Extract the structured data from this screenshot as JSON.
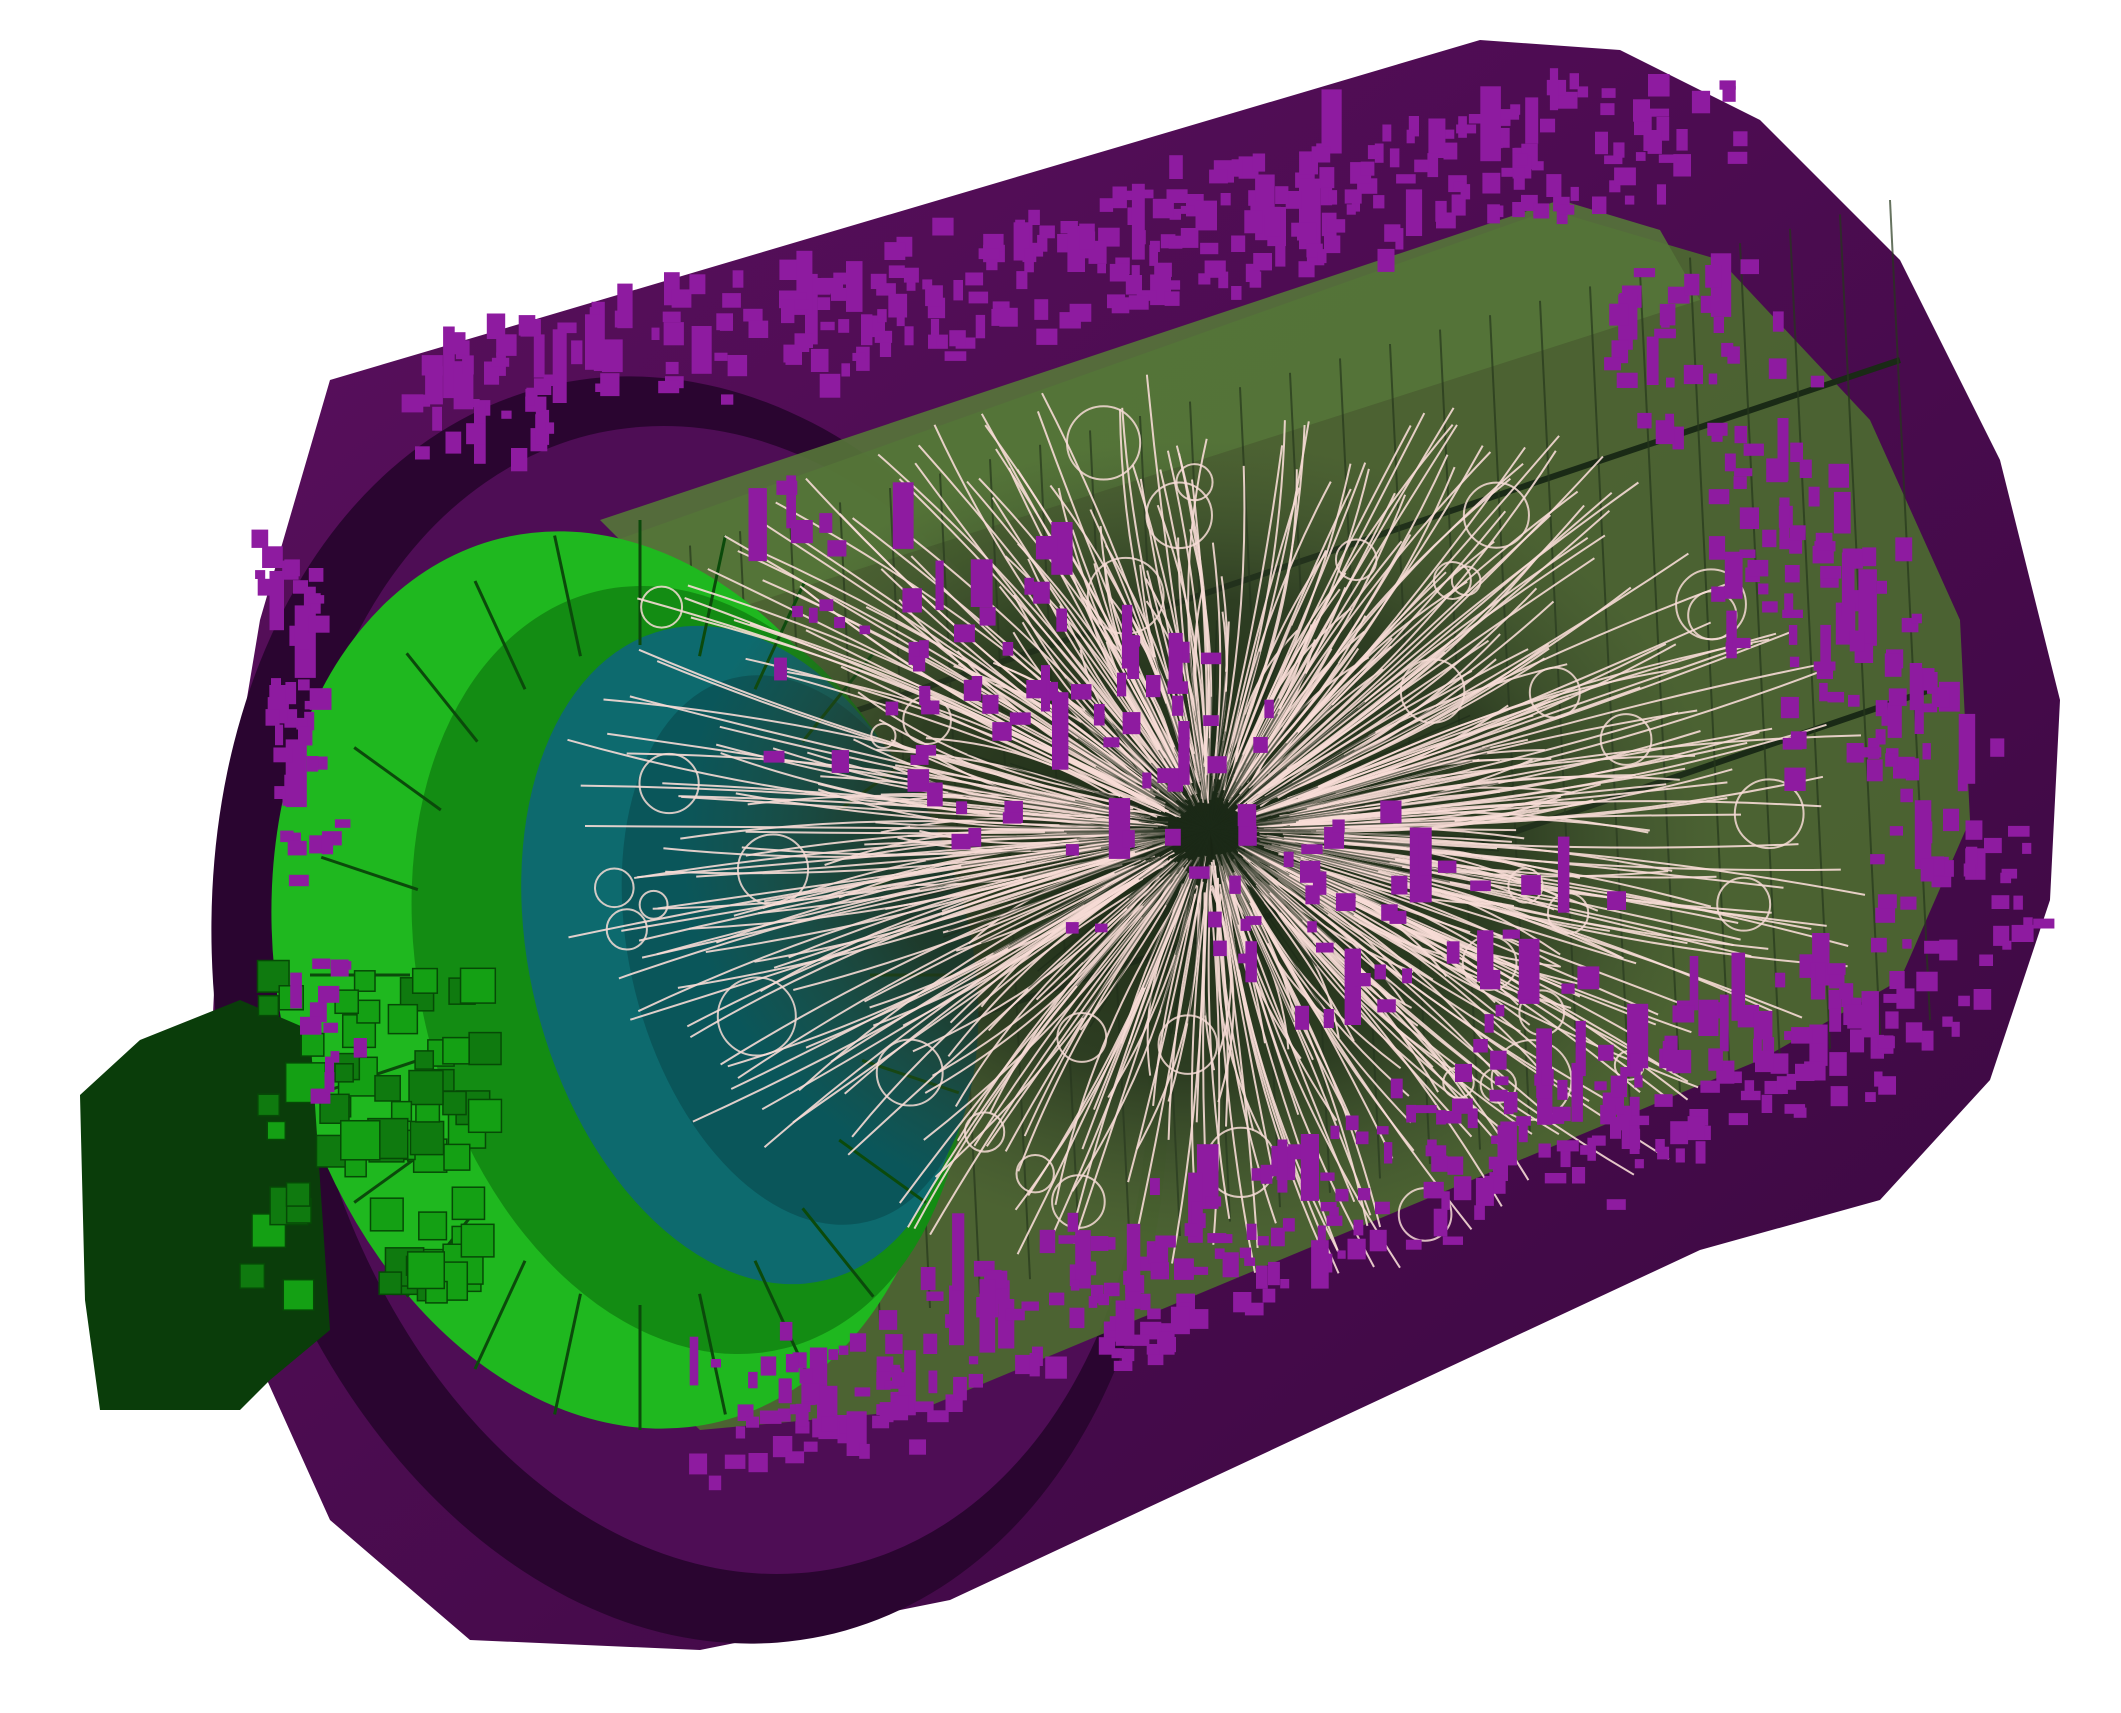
{
  "image": {
    "kind": "3d-detector-event-display",
    "background": "#ffffff"
  },
  "colors": {
    "outer_shell": "#4a0a4a",
    "outer_shell_dark": "#2a0530",
    "hcal_hits": "#8e1ba0",
    "ecal_barrel": "#3f5a28",
    "ecal_endcap": "#1fb81f",
    "endcap_dark": "#0c4a0c",
    "beam_pipe": "#0a3d0a",
    "forward_blocks": "#14a014",
    "inner_tracker": "#0d6a6e",
    "tracks": "#f7dcd6",
    "track_core": "#1c2a18"
  },
  "icons": {
    "detector": "cylindrical-detector-icon",
    "tracks": "particle-tracks-icon",
    "hits": "calorimeter-hits-icon"
  }
}
